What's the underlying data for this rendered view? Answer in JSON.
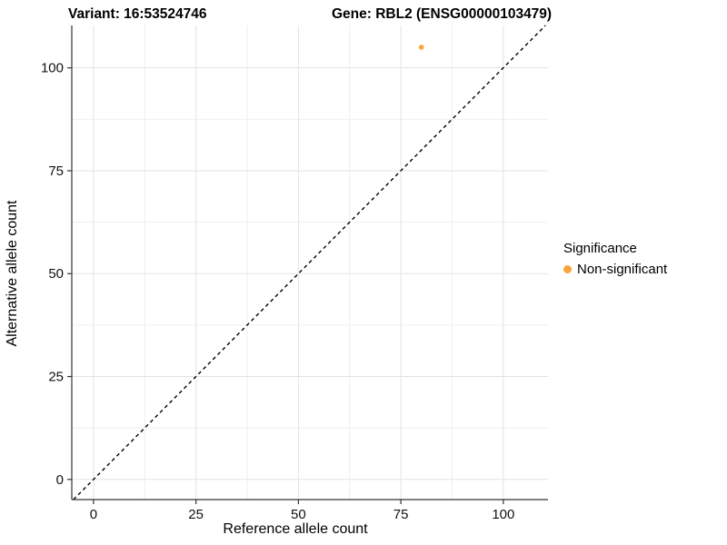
{
  "title": {
    "variant": "Variant: 16:53524746",
    "gene": "Gene: RBL2 (ENSG00000103479)"
  },
  "chart_data": {
    "type": "scatter",
    "xlabel": "Reference allele count",
    "ylabel": "Alternative allele count",
    "xticks": [
      0,
      25,
      50,
      75,
      100
    ],
    "yticks": [
      0,
      25,
      50,
      75,
      100
    ],
    "xlim": [
      -5.3,
      110.9
    ],
    "ylim": [
      -4.9,
      110.3
    ],
    "minor_grid_values": [
      12.5,
      37.5,
      62.5,
      87.5
    ],
    "grid": true,
    "points": [
      {
        "x": 80,
        "y": 105,
        "series": "Non-significant"
      }
    ],
    "reference_line": {
      "type": "identity_y_equals_x",
      "style": "dashed"
    },
    "legend": {
      "title": "Significance",
      "position": "right",
      "entries": [
        {
          "label": "Non-significant",
          "color": "#FAA43A"
        }
      ]
    }
  },
  "colors": {
    "point": "#FAA43A",
    "grid_major": "#E3E3E3",
    "grid_minor": "#EFEFEF",
    "axis_line": "#333333",
    "dashed_line": "#000000",
    "tick_text": "#111111"
  }
}
